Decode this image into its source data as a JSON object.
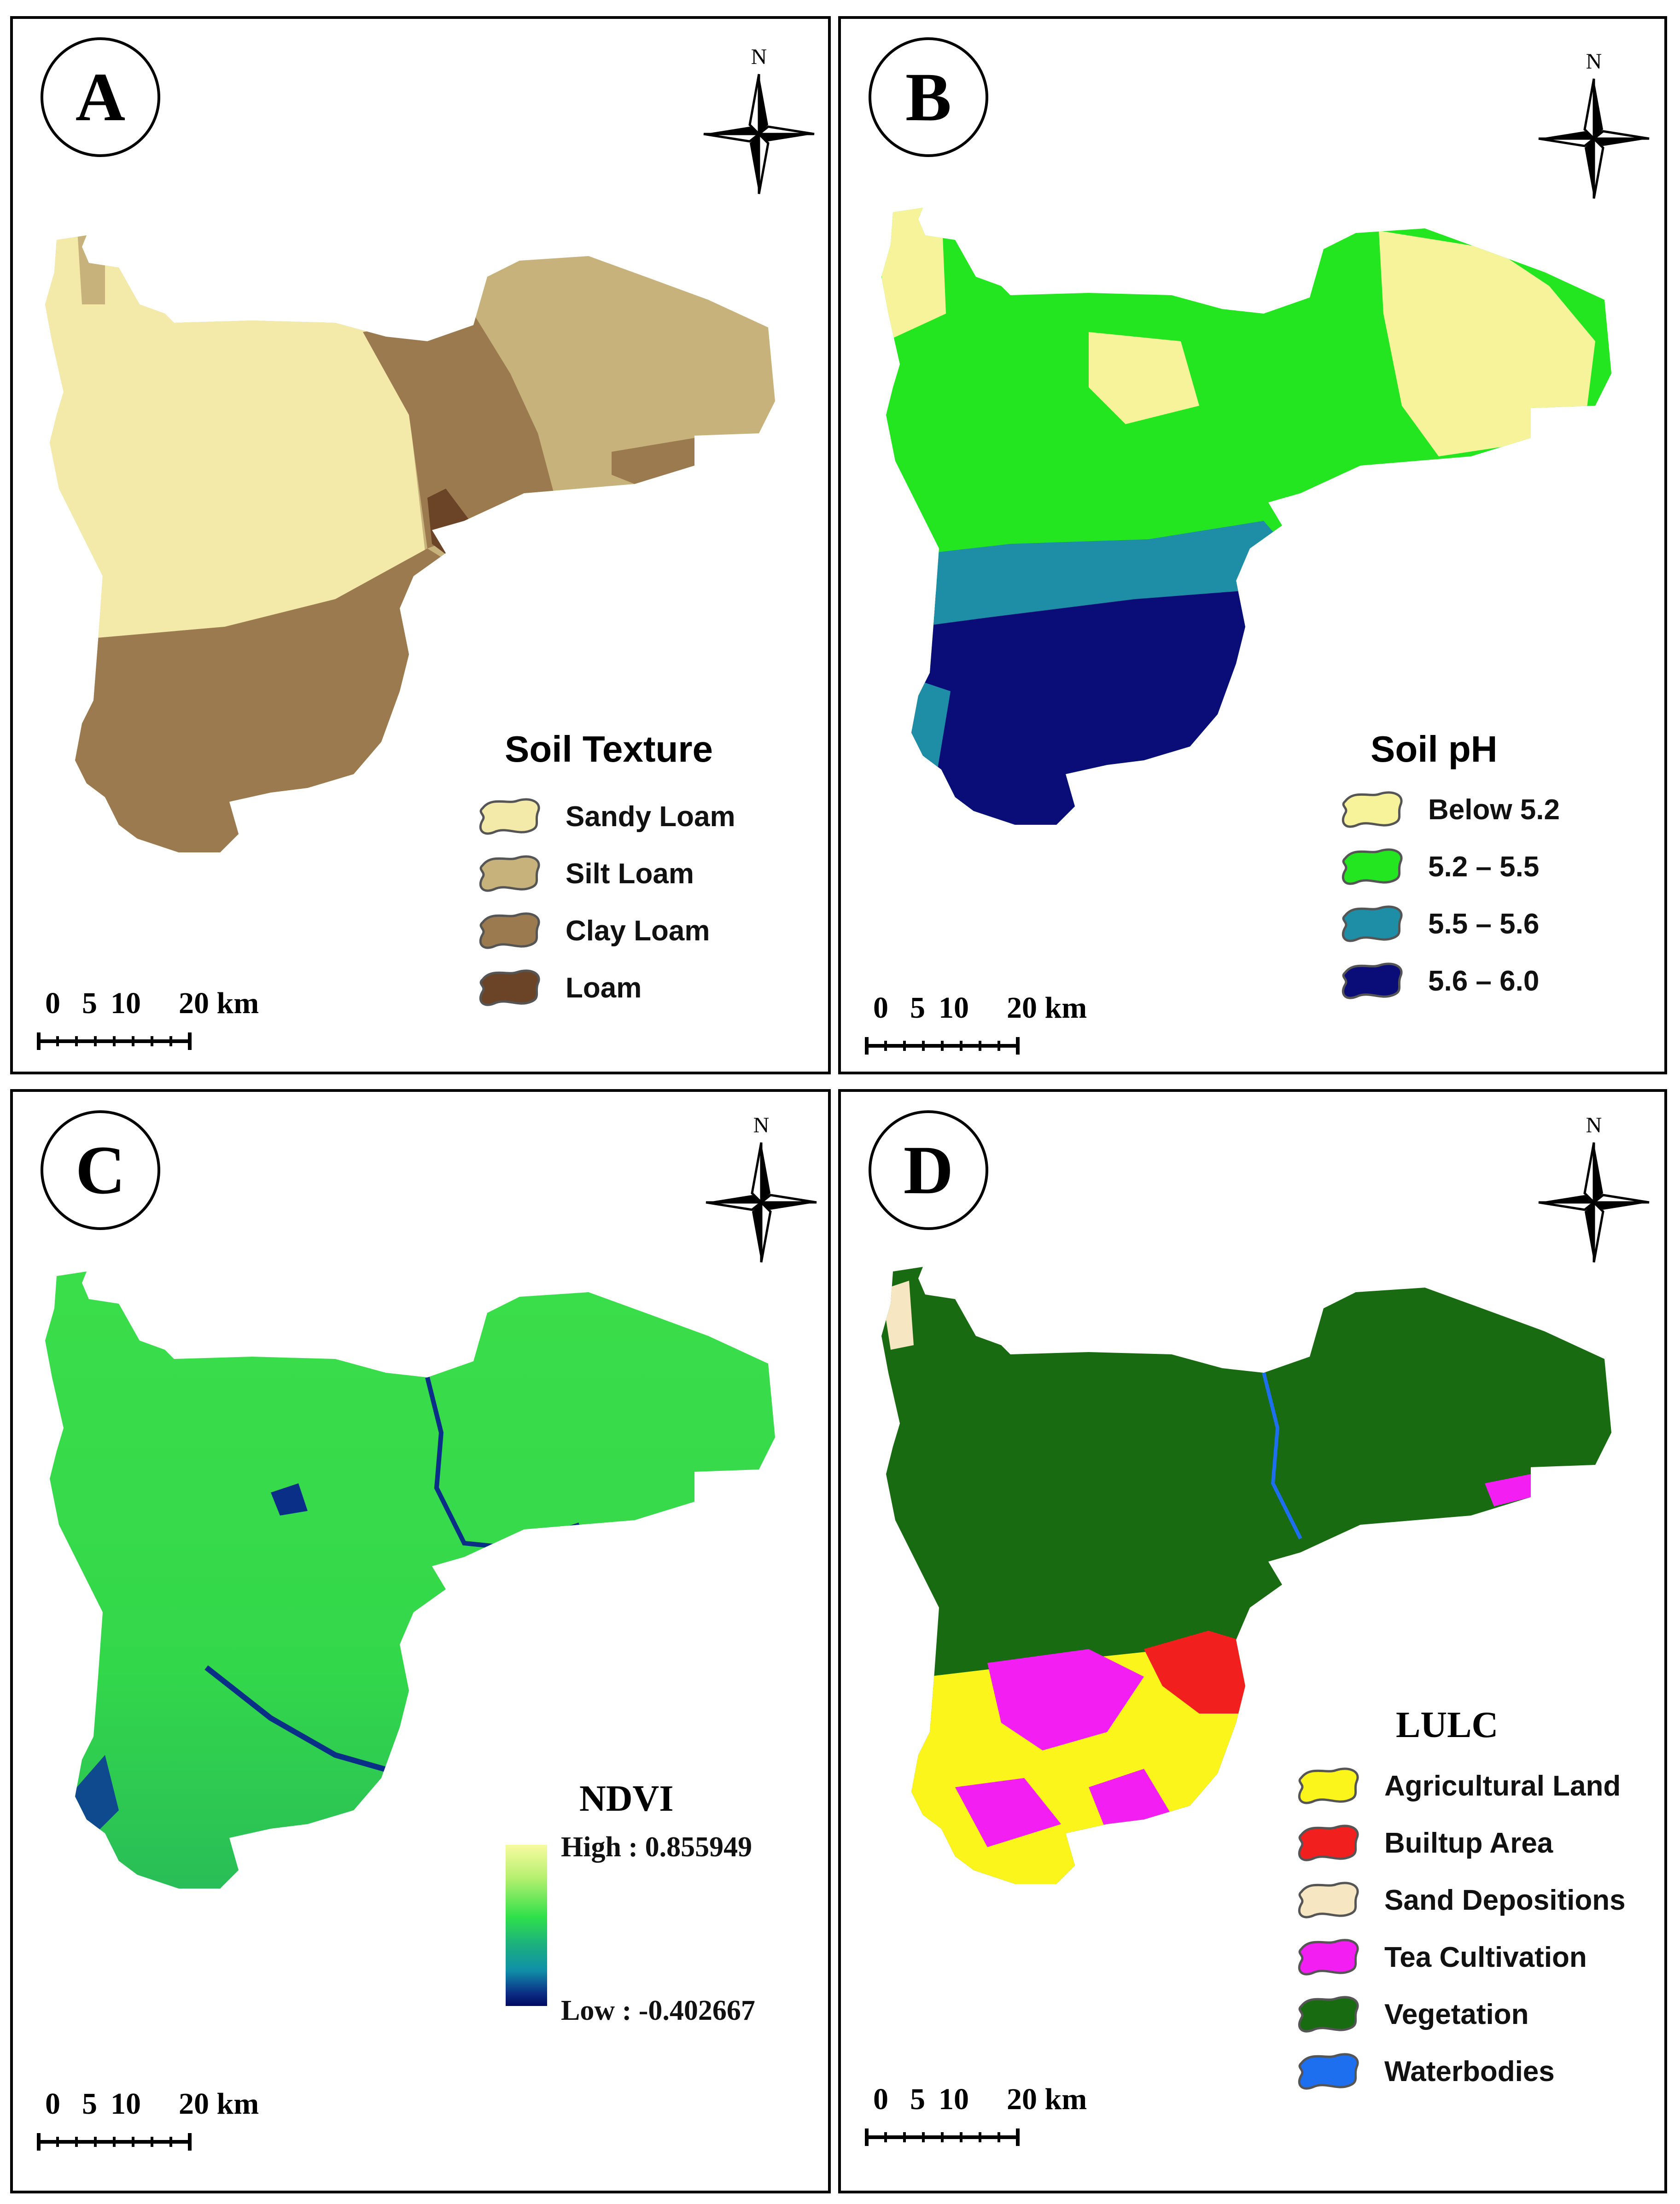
{
  "panels": {
    "a": {
      "label": "A",
      "legend_title": "Soil Texture",
      "legend": [
        {
          "label": "Sandy Loam",
          "color": "#f3eaa9"
        },
        {
          "label": "Silt Loam",
          "color": "#c8b27c"
        },
        {
          "label": "Clay Loam",
          "color": "#9b7a50"
        },
        {
          "label": "Loam",
          "color": "#6b4427"
        }
      ]
    },
    "b": {
      "label": "B",
      "legend_title": "Soil pH",
      "legend": [
        {
          "label": "Below 5.2",
          "color": "#f7f39a"
        },
        {
          "label": "5.2 – 5.5",
          "color": "#23e620"
        },
        {
          "label": "5.5 – 5.6",
          "color": "#1e8ea6"
        },
        {
          "label": "5.6 – 6.0",
          "color": "#0a0d78"
        }
      ]
    },
    "c": {
      "label": "C",
      "legend_title": "NDVI",
      "high_label": "High : 0.855949",
      "low_label": "Low : -0.402667"
    },
    "d": {
      "label": "D",
      "legend_title": "LULC",
      "legend": [
        {
          "label": "Agricultural Land",
          "color": "#fbf51b"
        },
        {
          "label": "Builtup Area",
          "color": "#f21f1f"
        },
        {
          "label": "Sand Depositions",
          "color": "#f7e6c2"
        },
        {
          "label": "Tea Cultivation",
          "color": "#f21ef2"
        },
        {
          "label": "Vegetation",
          "color": "#196b12"
        },
        {
          "label": "Waterbodies",
          "color": "#1d6ff0"
        }
      ]
    }
  },
  "north_arrow": {
    "label": "N"
  },
  "scale_bar": {
    "t0": "0",
    "t1": "5",
    "t2": "10",
    "t3": "20 km"
  }
}
